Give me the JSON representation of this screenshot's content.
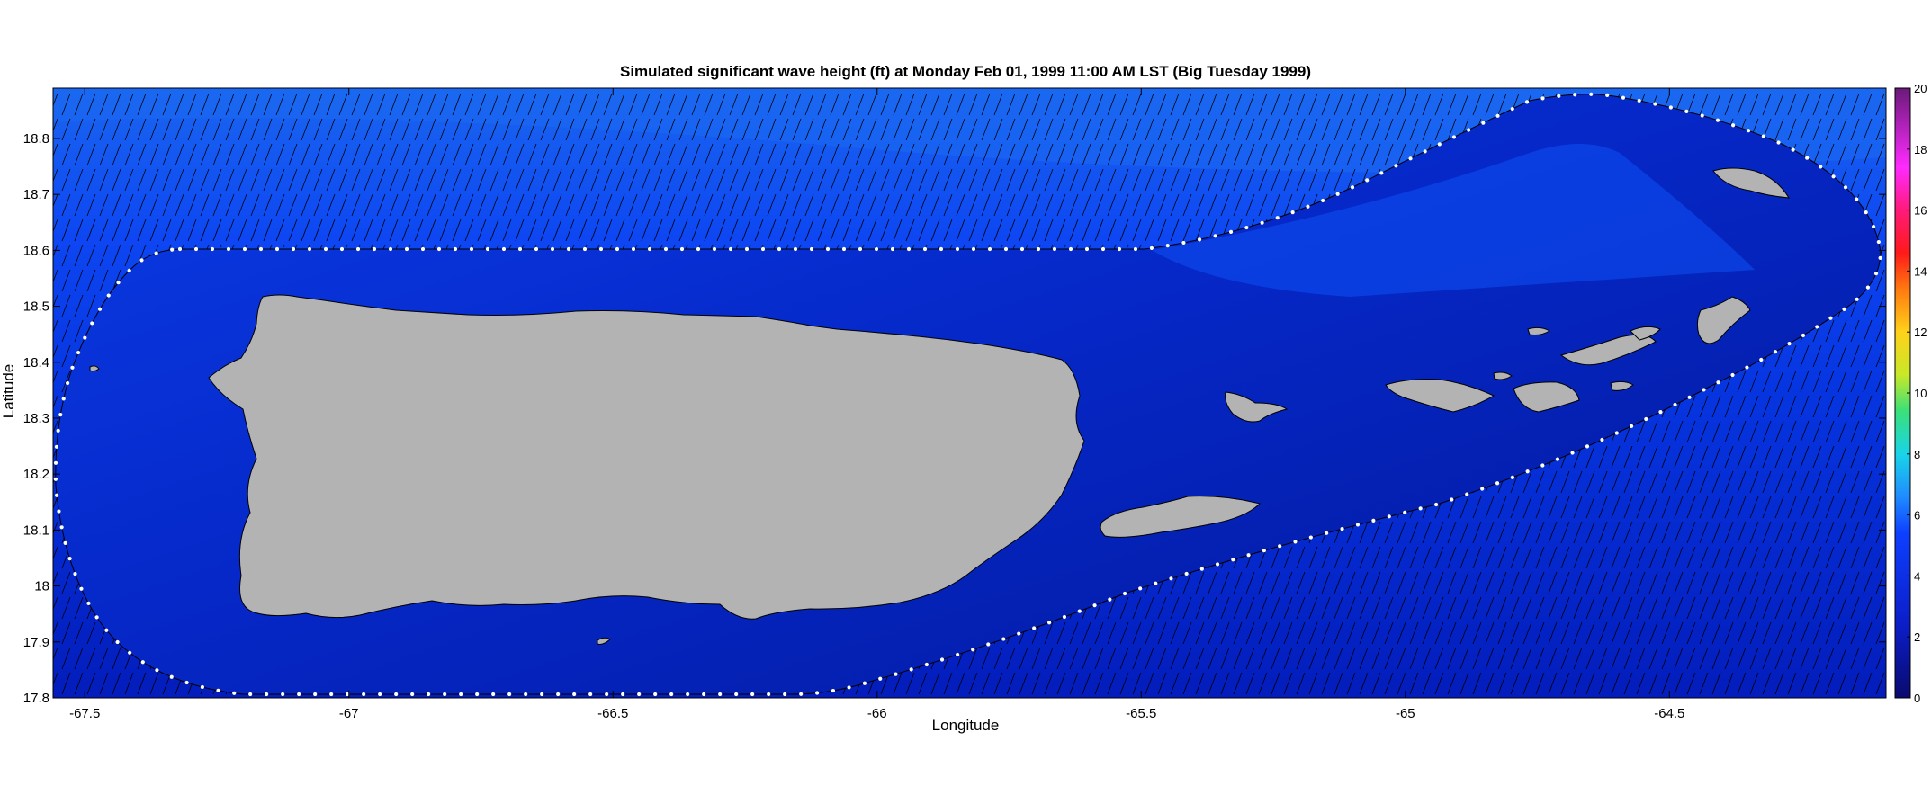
{
  "chart_data": {
    "type": "heatmap",
    "title": "Simulated significant wave height (ft) at Monday Feb 01, 1999 11:00 AM LST (Big Tuesday 1999)",
    "xlabel": "Longitude",
    "ylabel": "Latitude",
    "xlim": [
      -67.56,
      -64.09
    ],
    "ylim": [
      17.8,
      18.89
    ],
    "xticks": [
      "-67.5",
      "-67",
      "-66.5",
      "-66",
      "-65.5",
      "-65",
      "-64.5"
    ],
    "xtick_values": [
      -67.5,
      -67,
      -66.5,
      -66,
      -65.5,
      -65,
      -64.5
    ],
    "yticks": [
      "17.8",
      "17.9",
      "18",
      "18.1",
      "18.2",
      "18.3",
      "18.4",
      "18.5",
      "18.6",
      "18.7",
      "18.8"
    ],
    "ytick_values": [
      17.8,
      17.9,
      18.0,
      18.1,
      18.2,
      18.3,
      18.4,
      18.5,
      18.6,
      18.7,
      18.8
    ],
    "colorbar": {
      "ticks": [
        "0",
        "2",
        "4",
        "6",
        "8",
        "10",
        "12",
        "14",
        "16",
        "18",
        "20"
      ],
      "tick_values": [
        0,
        2,
        4,
        6,
        8,
        10,
        12,
        14,
        16,
        18,
        20
      ],
      "range": [
        0,
        20
      ]
    },
    "field": {
      "offshore_north_ft": 6,
      "inner_domain_ft": 4,
      "sheltered_south_ft": 2
    },
    "land_color": "#b3b3b3",
    "wave_direction_note": "arrows point from north-northeast toward south-southwest"
  }
}
